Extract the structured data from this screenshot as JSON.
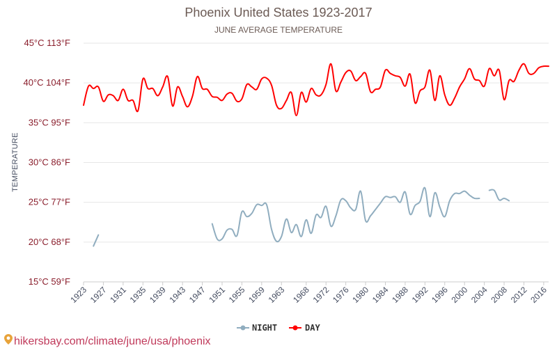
{
  "chart_data": {
    "type": "line",
    "title": "Phoenix United States 1923-2017",
    "subtitle": "JUNE AVERAGE TEMPERATURE",
    "ylabel": "TEMPERATURE",
    "xlabel": "",
    "ylim": [
      15,
      45
    ],
    "xlim": [
      1923,
      2017
    ],
    "y_ticks": [
      {
        "value": 45,
        "label": "45°C 113°F"
      },
      {
        "value": 40,
        "label": "40°C 104°F"
      },
      {
        "value": 35,
        "label": "35°C 95°F"
      },
      {
        "value": 30,
        "label": "30°C 86°F"
      },
      {
        "value": 25,
        "label": "25°C 77°F"
      },
      {
        "value": 20,
        "label": "20°C 68°F"
      },
      {
        "value": 15,
        "label": "15°C 59°F"
      }
    ],
    "x_ticks": [
      1923,
      1927,
      1931,
      1935,
      1939,
      1943,
      1947,
      1951,
      1955,
      1959,
      1963,
      1968,
      1972,
      1976,
      1980,
      1984,
      1988,
      1992,
      1996,
      2000,
      2004,
      2008,
      2012,
      2016
    ],
    "grid": "horizontal",
    "legend_position": "bottom",
    "series": [
      {
        "name": "NIGHT",
        "color": "#90adbf",
        "x": [
          1923,
          1924,
          1925,
          1926,
          1927,
          1928,
          1929,
          1930,
          1931,
          1932,
          1933,
          1934,
          1935,
          1936,
          1937,
          1938,
          1939,
          1940,
          1941,
          1942,
          1943,
          1944,
          1945,
          1946,
          1947,
          1948,
          1949,
          1950,
          1951,
          1952,
          1953,
          1954,
          1955,
          1956,
          1957,
          1958,
          1959,
          1960,
          1961,
          1962,
          1963,
          1964,
          1965,
          1966,
          1967,
          1968,
          1969,
          1970,
          1971,
          1972,
          1973,
          1974,
          1975,
          1976,
          1977,
          1978,
          1979,
          1980,
          1981,
          1982,
          1983,
          1984,
          1985,
          1986,
          1987,
          1988,
          1989,
          1990,
          1991,
          1992,
          1993,
          1994,
          1995,
          1996,
          1997,
          1998,
          1999,
          2000,
          2001,
          2002,
          2003,
          2004,
          2005,
          2006,
          2007,
          2008,
          2009,
          2010,
          2011,
          2012,
          2013,
          2014,
          2015,
          2016,
          2017
        ],
        "values": [
          null,
          null,
          19.5,
          20.9,
          null,
          null,
          null,
          null,
          null,
          null,
          null,
          null,
          null,
          null,
          null,
          null,
          null,
          null,
          null,
          null,
          null,
          null,
          null,
          null,
          null,
          null,
          22.3,
          20.4,
          20.4,
          21.5,
          21.6,
          20.8,
          23.8,
          23.2,
          23.6,
          24.7,
          24.6,
          24.7,
          21.6,
          20.1,
          20.7,
          22.9,
          21.2,
          22.2,
          20.7,
          22.8,
          21.1,
          23.4,
          23.1,
          24.5,
          22.0,
          23.3,
          25.3,
          25.2,
          24.3,
          24.1,
          26.4,
          22.7,
          23.3,
          24.1,
          24.9,
          25.7,
          25.6,
          25.7,
          25.0,
          26.3,
          23.5,
          24.6,
          25.1,
          26.8,
          23.2,
          26.2,
          24.4,
          23.2,
          25.2,
          26.1,
          26.1,
          26.4,
          25.9,
          25.5,
          25.5,
          null,
          26.5,
          26.5,
          25.3,
          25.5,
          25.2,
          null,
          null,
          null,
          null,
          null,
          null,
          null,
          null
        ]
      },
      {
        "name": "DAY",
        "color": "#ff0000",
        "x": [
          1923,
          1924,
          1925,
          1926,
          1927,
          1928,
          1929,
          1930,
          1931,
          1932,
          1933,
          1934,
          1935,
          1936,
          1937,
          1938,
          1939,
          1940,
          1941,
          1942,
          1943,
          1944,
          1945,
          1946,
          1947,
          1948,
          1949,
          1950,
          1951,
          1952,
          1953,
          1954,
          1955,
          1956,
          1957,
          1958,
          1959,
          1960,
          1961,
          1962,
          1963,
          1964,
          1965,
          1966,
          1967,
          1968,
          1969,
          1970,
          1971,
          1972,
          1973,
          1974,
          1975,
          1976,
          1977,
          1978,
          1979,
          1980,
          1981,
          1982,
          1983,
          1984,
          1985,
          1986,
          1987,
          1988,
          1989,
          1990,
          1991,
          1992,
          1993,
          1994,
          1995,
          1996,
          1997,
          1998,
          1999,
          2000,
          2001,
          2002,
          2003,
          2004,
          2005,
          2006,
          2007,
          2008,
          2009,
          2010,
          2011,
          2012,
          2013,
          2014,
          2015,
          2016,
          2017
        ],
        "values": [
          37.2,
          39.6,
          39.3,
          39.5,
          37.7,
          38.5,
          38.4,
          37.8,
          39.2,
          37.8,
          37.8,
          36.5,
          40.5,
          39.3,
          39.3,
          38.4,
          39.5,
          40.8,
          37.1,
          39.5,
          38.3,
          37.0,
          38.3,
          40.8,
          39.3,
          39.2,
          38.3,
          38.2,
          37.8,
          38.6,
          38.7,
          37.7,
          38.0,
          39.8,
          39.5,
          39.2,
          40.5,
          40.6,
          39.7,
          37.2,
          36.8,
          37.8,
          38.8,
          35.9,
          38.8,
          37.6,
          39.3,
          38.5,
          38.5,
          39.8,
          42.4,
          39.0,
          40.1,
          41.3,
          41.5,
          40.3,
          40.8,
          41.2,
          38.9,
          39.2,
          39.5,
          41.6,
          41.2,
          40.9,
          40.7,
          39.6,
          41.1,
          37.5,
          39.0,
          39.5,
          41.6,
          37.8,
          40.9,
          38.5,
          37.2,
          38.1,
          39.5,
          40.5,
          41.8,
          40.5,
          40.3,
          39.6,
          41.8,
          40.9,
          41.6,
          37.9,
          40.3,
          40.2,
          41.6,
          42.4,
          41.2,
          41.2,
          41.9,
          42.1,
          42.1
        ]
      }
    ]
  },
  "legend": {
    "night_label": "NIGHT",
    "day_label": "DAY"
  },
  "watermark": {
    "text": "hikersbay.com/climate/june/usa/phoenix",
    "icon": "map-pin-icon"
  }
}
